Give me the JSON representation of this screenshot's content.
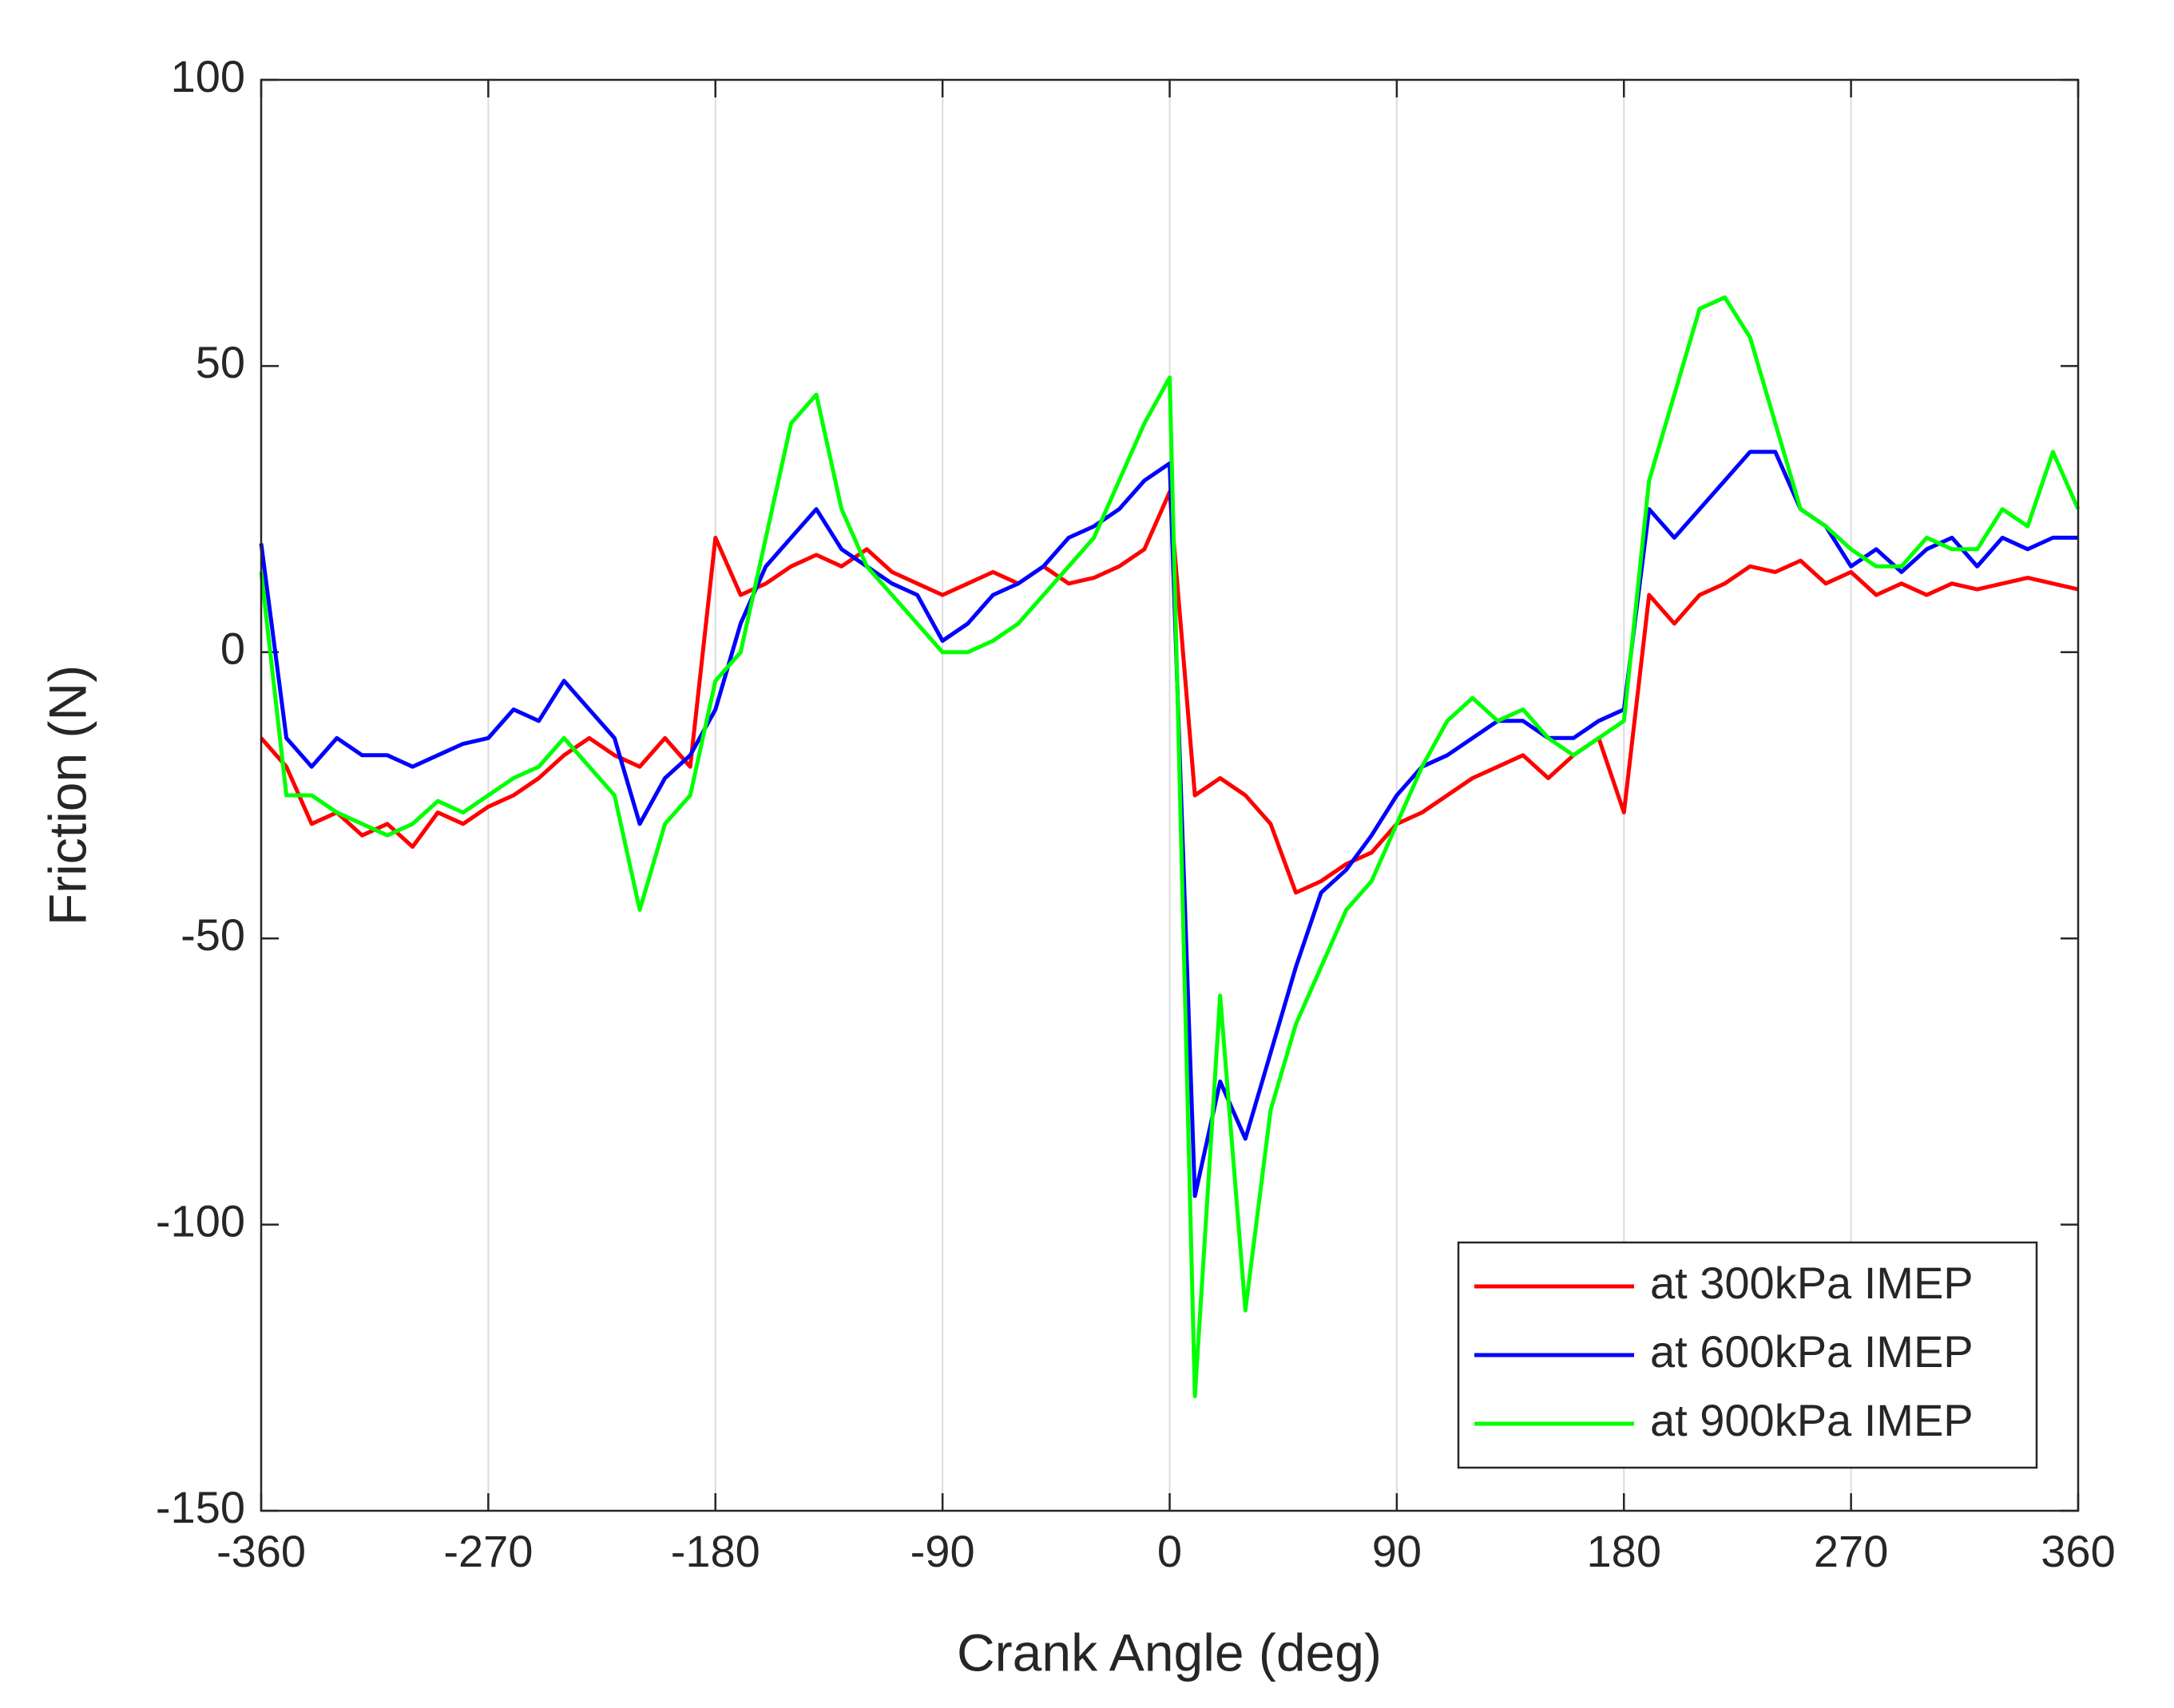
{
  "chart_data": {
    "type": "line",
    "xlabel": "Crank Angle (deg)",
    "ylabel": "Friction (N)",
    "x": [
      -360,
      -350,
      -340,
      -330,
      -320,
      -310,
      -300,
      -290,
      -280,
      -270,
      -260,
      -250,
      -240,
      -230,
      -220,
      -210,
      -200,
      -190,
      -180,
      -170,
      -160,
      -150,
      -140,
      -130,
      -120,
      -110,
      -100,
      -90,
      -80,
      -70,
      -60,
      -50,
      -40,
      -30,
      -20,
      -10,
      0,
      10,
      20,
      30,
      40,
      50,
      60,
      70,
      80,
      90,
      100,
      110,
      120,
      130,
      140,
      150,
      160,
      170,
      180,
      190,
      200,
      210,
      220,
      230,
      240,
      250,
      260,
      270,
      280,
      290,
      300,
      310,
      320,
      330,
      340,
      350,
      360
    ],
    "series": [
      {
        "name": "at 300kPa IMEP",
        "color": "#ff0000",
        "values": [
          -15,
          -20,
          -30,
          -28,
          -32,
          -30,
          -34,
          -28,
          -30,
          -27,
          -25,
          -22,
          -18,
          -15,
          -18,
          -20,
          -15,
          -20,
          20,
          10,
          12,
          15,
          17,
          15,
          18,
          14,
          12,
          10,
          12,
          14,
          12,
          15,
          12,
          13,
          15,
          18,
          28,
          -25,
          -22,
          -25,
          -30,
          -42,
          -40,
          -37,
          -35,
          -30,
          -28,
          -25,
          -22,
          -20,
          -18,
          -22,
          -18,
          -15,
          -28,
          10,
          5,
          10,
          12,
          15,
          14,
          16,
          12,
          14,
          10,
          12,
          10,
          12,
          11,
          12,
          13,
          12,
          11
        ]
      },
      {
        "name": "at 600kPa IMEP",
        "color": "#0000ff",
        "values": [
          19,
          -15,
          -20,
          -15,
          -18,
          -18,
          -20,
          -18,
          -16,
          -15,
          -10,
          -12,
          -5,
          -10,
          -15,
          -30,
          -22,
          -18,
          -10,
          5,
          15,
          20,
          25,
          18,
          15,
          12,
          10,
          2,
          5,
          10,
          12,
          15,
          20,
          22,
          25,
          30,
          33,
          -95,
          -75,
          -85,
          -70,
          -55,
          -42,
          -38,
          -32,
          -25,
          -20,
          -18,
          -15,
          -12,
          -12,
          -15,
          -15,
          -12,
          -10,
          25,
          20,
          25,
          30,
          35,
          35,
          25,
          22,
          15,
          18,
          14,
          18,
          20,
          15,
          20,
          18,
          20,
          20
        ]
      },
      {
        "name": "at 900kPa IMEP",
        "color": "#00ff00",
        "values": [
          14,
          -25,
          -25,
          -28,
          -30,
          -32,
          -30,
          -26,
          -28,
          -25,
          -22,
          -20,
          -15,
          -20,
          -25,
          -45,
          -30,
          -25,
          -5,
          0,
          20,
          40,
          45,
          25,
          15,
          10,
          5,
          0,
          0,
          2,
          5,
          10,
          15,
          20,
          30,
          40,
          48,
          -130,
          -60,
          -115,
          -80,
          -65,
          -55,
          -45,
          -40,
          -30,
          -20,
          -12,
          -8,
          -12,
          -10,
          -15,
          -18,
          -15,
          -12,
          30,
          45,
          60,
          62,
          55,
          40,
          25,
          22,
          18,
          15,
          15,
          20,
          18,
          18,
          25,
          22,
          35,
          25
        ]
      }
    ],
    "xlim": [
      -360,
      360
    ],
    "xticks": [
      -360,
      -270,
      -180,
      -90,
      0,
      90,
      180,
      270,
      360
    ],
    "ylim": [
      -150,
      100
    ],
    "yticks": [
      -150,
      -100,
      -50,
      0,
      50,
      100
    ],
    "grid": "x",
    "legend": "lower right"
  }
}
